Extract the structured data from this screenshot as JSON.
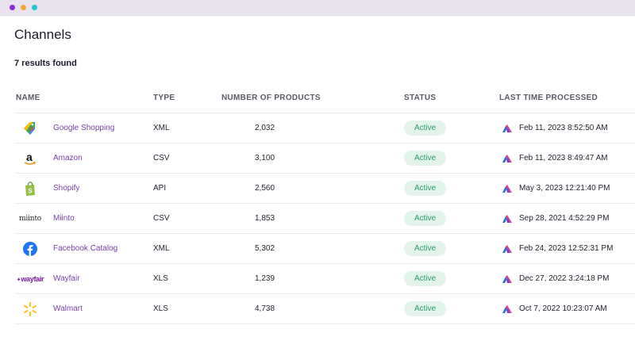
{
  "window": {
    "dots": [
      "#8b2cd3",
      "#f2a62f",
      "#23c3d6"
    ]
  },
  "page": {
    "title": "Channels",
    "results": "7 results found"
  },
  "table": {
    "headers": {
      "name": "NAME",
      "type": "TYPE",
      "products": "NUMBER OF PRODUCTS",
      "status": "STATUS",
      "processed": "LAST TIME PROCESSED"
    },
    "rows": [
      {
        "name": "Google Shopping",
        "type": "XML",
        "products": "2,032",
        "status": "Active",
        "processed": "Feb 11, 2023 8:52:50 AM",
        "icon": "google-shopping-icon"
      },
      {
        "name": "Amazon",
        "type": "CSV",
        "products": "3,100",
        "status": "Active",
        "processed": "Feb 11, 2023 8:49:47 AM",
        "icon": "amazon-icon"
      },
      {
        "name": "Shopify",
        "type": "API",
        "products": "2,560",
        "status": "Active",
        "processed": "May 3, 2023 12:21:40 PM",
        "icon": "shopify-icon"
      },
      {
        "name": "Miinto",
        "type": "CSV",
        "products": "1,853",
        "status": "Active",
        "processed": "Sep 28, 2021 4:52:29 PM",
        "icon": "miinto-icon",
        "logo_text": "miinto"
      },
      {
        "name": "Facebook Catalog",
        "type": "XML",
        "products": "5,302",
        "status": "Active",
        "processed": "Feb 24, 2023 12:52:31 PM",
        "icon": "facebook-icon"
      },
      {
        "name": "Wayfair",
        "type": "XLS",
        "products": "1,239",
        "status": "Active",
        "processed": "Dec 27, 2022 3:24:18 PM",
        "icon": "wayfair-icon",
        "logo_text": "wayfair"
      },
      {
        "name": "Walmart",
        "type": "XLS",
        "products": "4,738",
        "status": "Active",
        "processed": "Oct 7, 2022 10:23:07 AM",
        "icon": "walmart-icon"
      }
    ]
  },
  "colors": {
    "accent_link": "#7a3fa8",
    "status_bg": "#e2f4ec",
    "status_text": "#2e9a6d"
  }
}
